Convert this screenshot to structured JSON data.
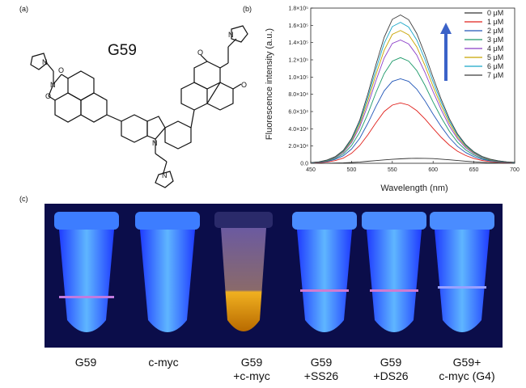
{
  "panels": {
    "a": "(a)",
    "b": "(b)",
    "c": "(c)"
  },
  "compound": {
    "name": "G59",
    "atoms": {
      "n": "N",
      "o": "O"
    }
  },
  "chart_data": {
    "type": "line",
    "title": "",
    "xlabel": "Wavelength (nm)",
    "ylabel": "Fluorescence intensity (a.u.)",
    "xlim": [
      450,
      700
    ],
    "ylim": [
      0,
      180000
    ],
    "xticks": [
      450,
      500,
      550,
      600,
      650,
      700
    ],
    "yticks": [
      0,
      20000,
      40000,
      60000,
      80000,
      100000,
      120000,
      140000,
      160000,
      180000
    ],
    "ytick_labels": [
      "0.0",
      "2.0×10⁴",
      "4.0×10⁴",
      "6.0×10⁴",
      "8.0×10⁴",
      "1.0×10⁵",
      "1.2×10⁵",
      "1.4×10⁵",
      "1.6×10⁵",
      "1.8×10⁵"
    ],
    "grid": false,
    "legend_position": "top-right",
    "arrow": "upward arrow beside legend",
    "x": [
      450,
      460,
      470,
      480,
      490,
      500,
      510,
      520,
      530,
      540,
      550,
      560,
      570,
      580,
      590,
      600,
      610,
      620,
      630,
      640,
      650,
      660,
      670,
      680,
      690,
      700
    ],
    "series": [
      {
        "name": "0 μM",
        "color": "#333333",
        "values": [
          0,
          0,
          100,
          250,
          500,
          900,
          1500,
          2300,
          3100,
          3900,
          4600,
          5200,
          5600,
          5800,
          5700,
          5400,
          4800,
          4000,
          3200,
          2400,
          1700,
          1100,
          700,
          400,
          200,
          100
        ]
      },
      {
        "name": "1 μM",
        "color": "#e0201b",
        "values": [
          300,
          700,
          1500,
          3100,
          6000,
          11500,
          20500,
          33000,
          47000,
          60000,
          67500,
          70000,
          67500,
          61000,
          51500,
          40500,
          30000,
          21000,
          14000,
          9000,
          5500,
          3300,
          2000,
          1200,
          700,
          400
        ]
      },
      {
        "name": "2 μM",
        "color": "#2156b8",
        "values": [
          400,
          1000,
          2200,
          4500,
          8700,
          16500,
          29000,
          46500,
          66000,
          84000,
          95000,
          98000,
          95000,
          86000,
          72500,
          57000,
          42500,
          29500,
          19500,
          12500,
          7700,
          4600,
          2800,
          1700,
          1000,
          600
        ]
      },
      {
        "name": "3 μM",
        "color": "#1d9a6a",
        "values": [
          500,
          1200,
          2700,
          5500,
          10700,
          20500,
          36000,
          57500,
          82000,
          104000,
          118500,
          122500,
          118500,
          107500,
          90500,
          71000,
          53000,
          37000,
          24500,
          15500,
          9600,
          5700,
          3400,
          2000,
          1200,
          700
        ]
      },
      {
        "name": "4 μM",
        "color": "#8a3dc8",
        "values": [
          600,
          1400,
          3200,
          6400,
          12500,
          24000,
          42000,
          67500,
          96000,
          122000,
          139000,
          143000,
          138500,
          125500,
          105500,
          83000,
          62000,
          43000,
          28500,
          18000,
          11200,
          6700,
          4000,
          2400,
          1400,
          800
        ]
      },
      {
        "name": "5 μM",
        "color": "#c8a400",
        "values": [
          650,
          1500,
          3400,
          6900,
          13400,
          25700,
          45000,
          72500,
          103000,
          131000,
          149500,
          154000,
          149000,
          135000,
          113500,
          89000,
          66500,
          46500,
          30500,
          19500,
          12000,
          7200,
          4300,
          2600,
          1500,
          900
        ]
      },
      {
        "name": "6 μM",
        "color": "#19a6c8",
        "values": [
          700,
          1600,
          3600,
          7300,
          14200,
          27200,
          47500,
          76500,
          109000,
          139000,
          158500,
          163500,
          158000,
          143000,
          120500,
          94500,
          70500,
          49000,
          32500,
          20600,
          12700,
          7600,
          4600,
          2700,
          1600,
          900
        ]
      },
      {
        "name": "7 μM",
        "color": "#3c3c3c",
        "values": [
          750,
          1700,
          3800,
          7700,
          15000,
          28700,
          50000,
          80500,
          114500,
          146000,
          167000,
          172000,
          166500,
          150500,
          126500,
          99500,
          74000,
          51500,
          34000,
          21600,
          13300,
          8000,
          4800,
          2900,
          1700,
          1000
        ]
      }
    ]
  },
  "tubes": [
    {
      "line1": "G59",
      "line2": ""
    },
    {
      "line1": "c-myc",
      "line2": ""
    },
    {
      "line1": "G59",
      "line2": "+c-myc"
    },
    {
      "line1": "G59",
      "line2": "+SS26"
    },
    {
      "line1": "G59",
      "line2": "+DS26"
    },
    {
      "line1": "G59+",
      "line2": "c-myc (G4)"
    }
  ]
}
